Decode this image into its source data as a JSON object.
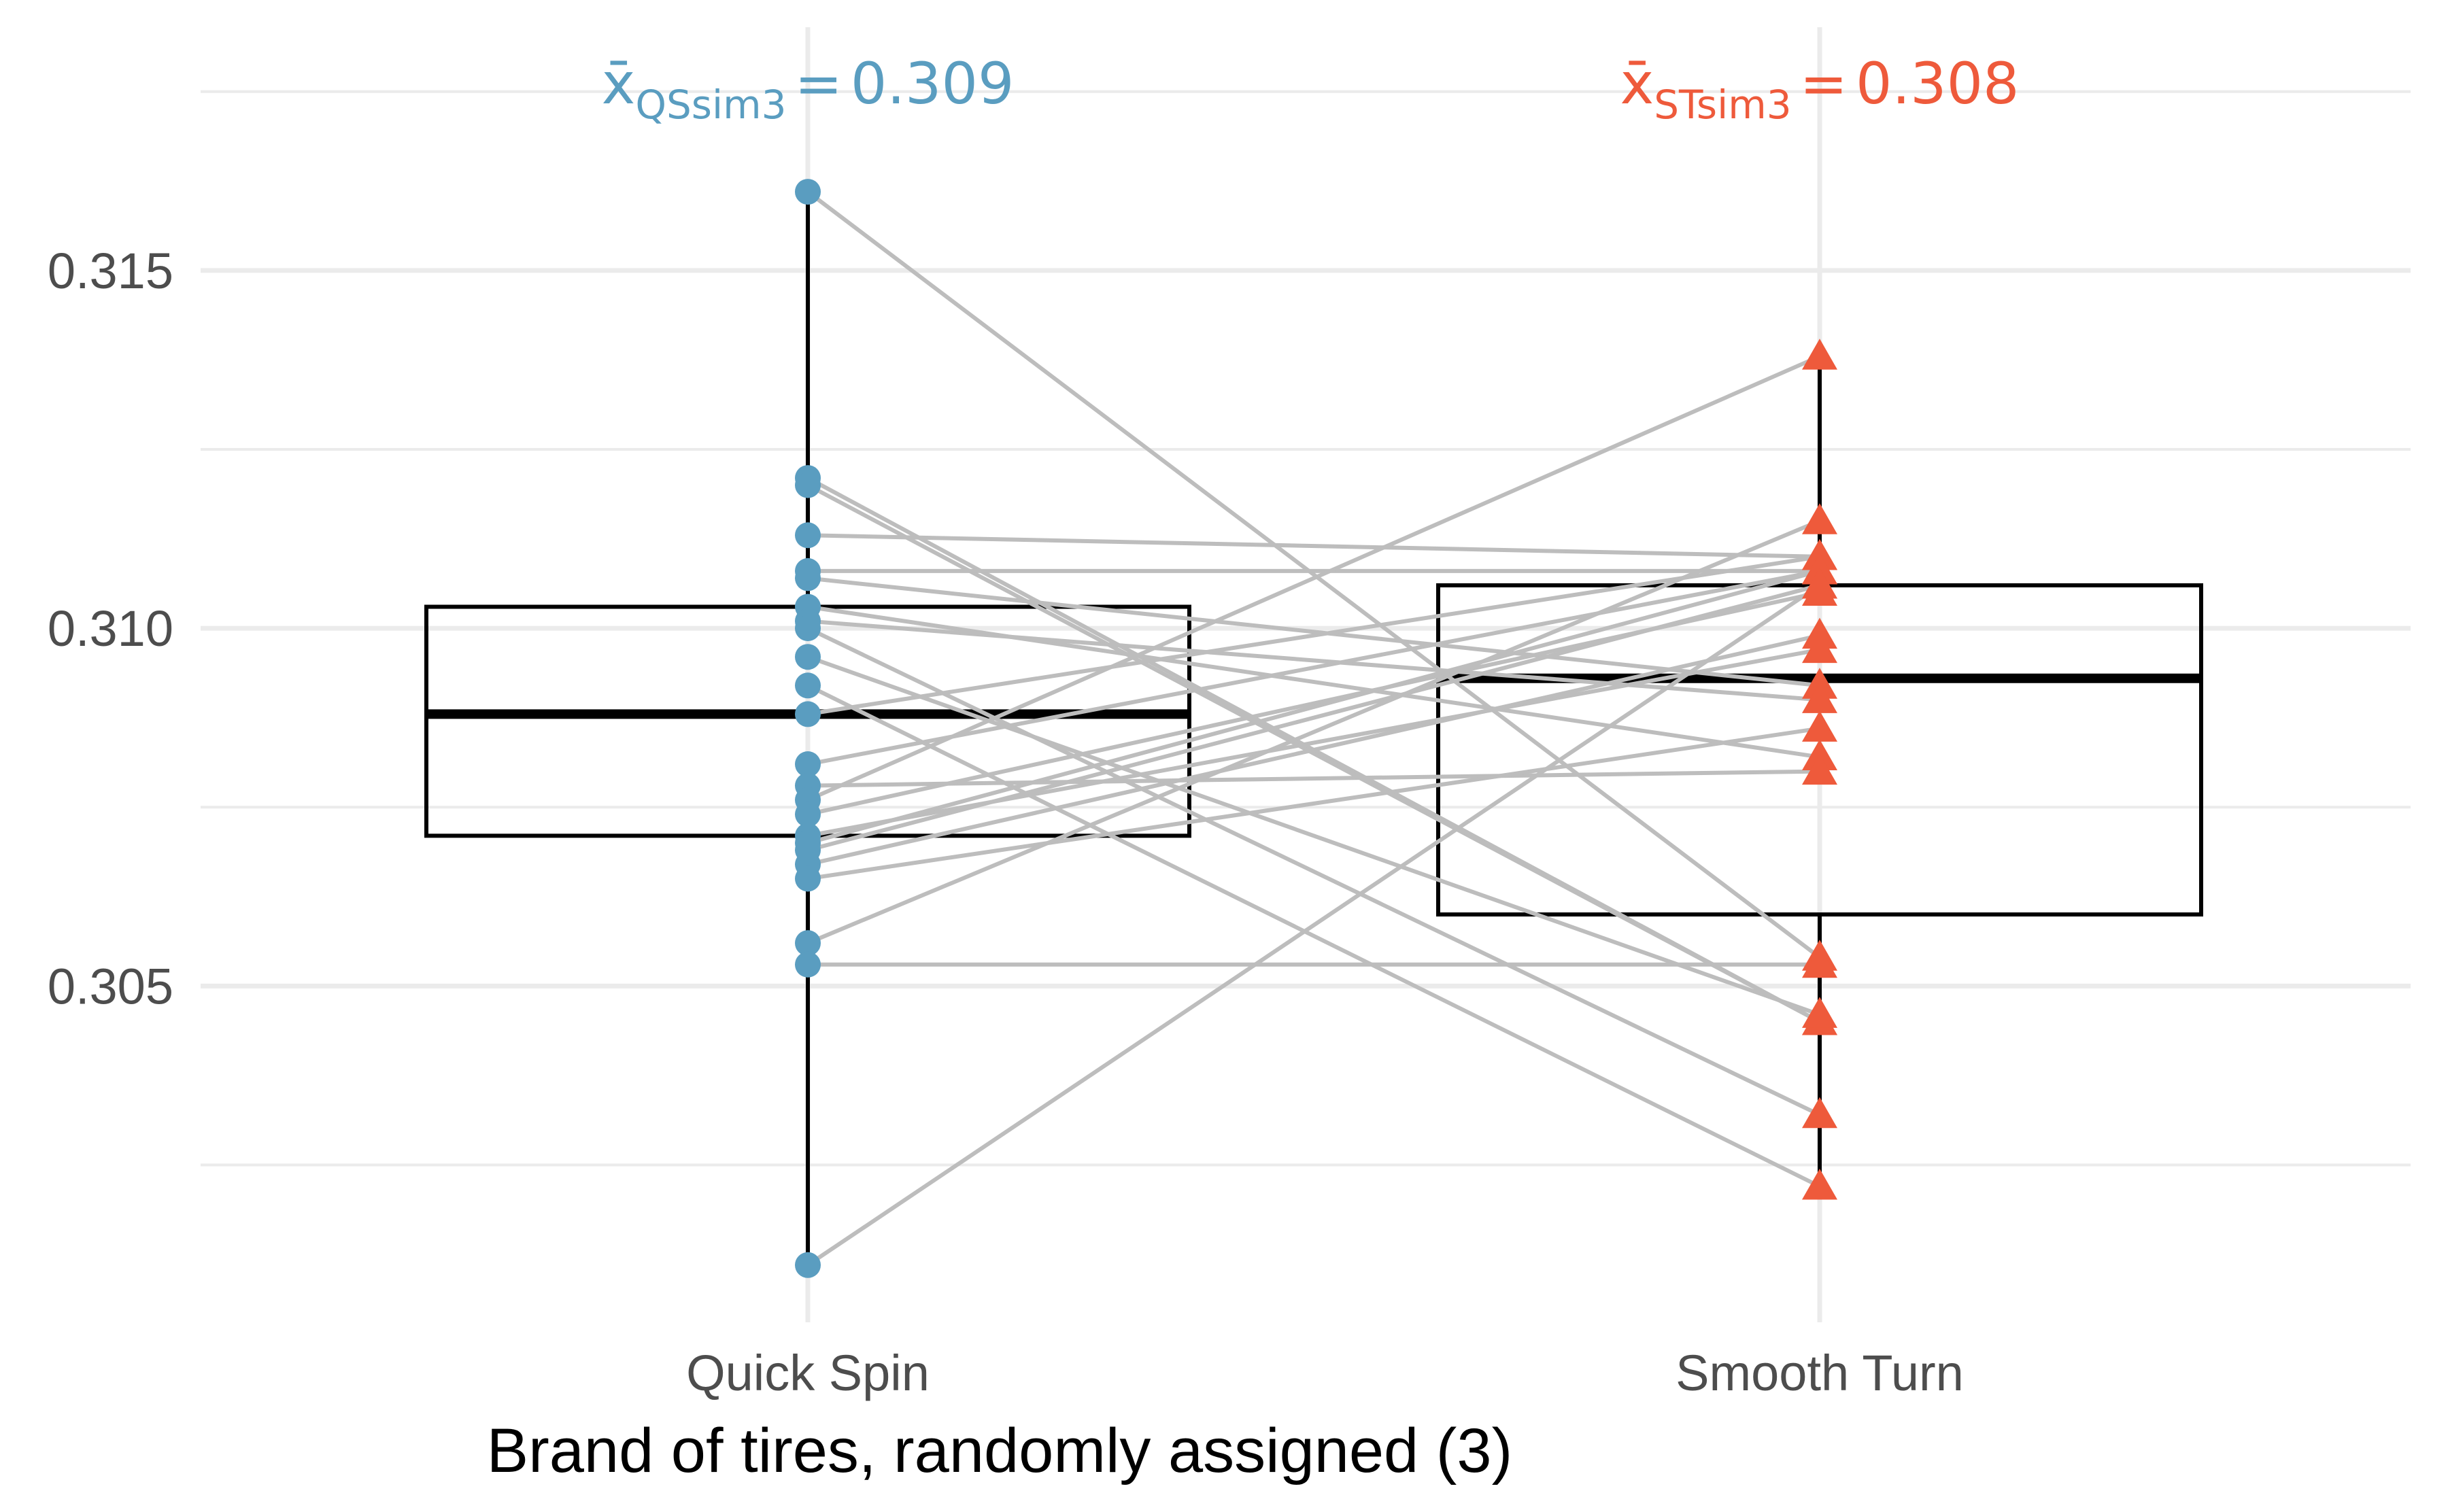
{
  "chart_data": {
    "type": "box",
    "title": "",
    "xlabel": "Brand of tires, randomly assigned (3)",
    "ylabel": "",
    "categories": [
      "Quick Spin",
      "Smooth Turn"
    ],
    "ylim": [
      0.3003,
      0.3184
    ],
    "y_ticks": [
      0.305,
      0.31,
      0.315
    ],
    "y_tick_labels": [
      "0.305",
      "0.310",
      "0.315"
    ],
    "grid": true,
    "colors": {
      "quick_spin": "#5a9dc0",
      "smooth_turn": "#ee5a3b",
      "pair_line": "#bdbdbd",
      "box": "#000000",
      "grid": "#ebebeb"
    },
    "mean_labels": [
      {
        "symbol": "x̄",
        "subscript": "QSsim3",
        "equals": "=",
        "value": "0.309",
        "color": "#5a9dc0"
      },
      {
        "symbol": "x̄",
        "subscript": "STsim3",
        "equals": "=",
        "value": "0.308",
        "color": "#ee5a3b"
      }
    ],
    "boxes": [
      {
        "name": "Quick Spin",
        "q1": 0.3071,
        "median": 0.3088,
        "q3": 0.3103,
        "whisker_low": 0.3011,
        "whisker_high": 0.3161
      },
      {
        "name": "Smooth Turn",
        "q1": 0.306,
        "median": 0.3093,
        "q3": 0.3106,
        "whisker_low": 0.3022,
        "whisker_high": 0.3138
      }
    ],
    "pairs": [
      {
        "quick_spin": 0.3161,
        "smooth_turn": 0.3054
      },
      {
        "quick_spin": 0.3121,
        "smooth_turn": 0.3045
      },
      {
        "quick_spin": 0.312,
        "smooth_turn": 0.3045
      },
      {
        "quick_spin": 0.3113,
        "smooth_turn": 0.311
      },
      {
        "quick_spin": 0.3108,
        "smooth_turn": 0.3108
      },
      {
        "quick_spin": 0.3107,
        "smooth_turn": 0.3092
      },
      {
        "quick_spin": 0.3103,
        "smooth_turn": 0.3082
      },
      {
        "quick_spin": 0.3101,
        "smooth_turn": 0.309
      },
      {
        "quick_spin": 0.31,
        "smooth_turn": 0.3032
      },
      {
        "quick_spin": 0.3096,
        "smooth_turn": 0.3046
      },
      {
        "quick_spin": 0.3092,
        "smooth_turn": 0.3022
      },
      {
        "quick_spin": 0.3088,
        "smooth_turn": 0.311
      },
      {
        "quick_spin": 0.3081,
        "smooth_turn": 0.3108
      },
      {
        "quick_spin": 0.3078,
        "smooth_turn": 0.308
      },
      {
        "quick_spin": 0.3076,
        "smooth_turn": 0.3138
      },
      {
        "quick_spin": 0.3074,
        "smooth_turn": 0.3105
      },
      {
        "quick_spin": 0.3071,
        "smooth_turn": 0.3097
      },
      {
        "quick_spin": 0.307,
        "smooth_turn": 0.3108
      },
      {
        "quick_spin": 0.3069,
        "smooth_turn": 0.3106
      },
      {
        "quick_spin": 0.3067,
        "smooth_turn": 0.3099
      },
      {
        "quick_spin": 0.3065,
        "smooth_turn": 0.3086
      },
      {
        "quick_spin": 0.3056,
        "smooth_turn": 0.3115
      },
      {
        "quick_spin": 0.3053,
        "smooth_turn": 0.3053
      },
      {
        "quick_spin": 0.3011,
        "smooth_turn": 0.3106
      }
    ]
  }
}
